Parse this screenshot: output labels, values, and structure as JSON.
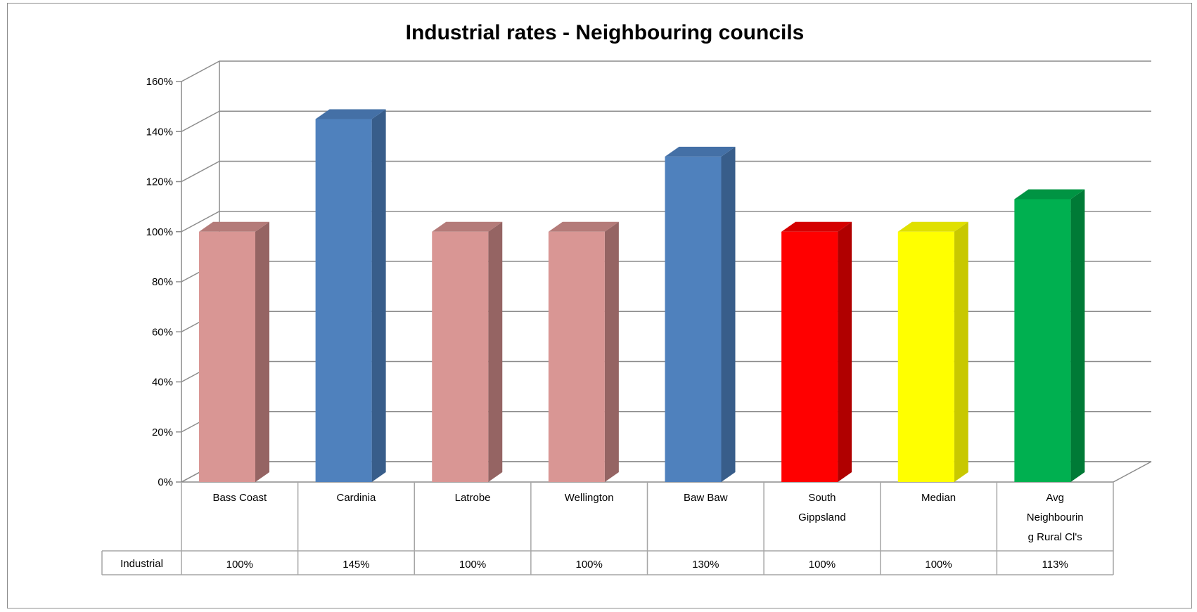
{
  "chart_data": {
    "type": "bar",
    "title": "Industrial rates - Neighbouring councils",
    "xlabel": "",
    "ylabel": "",
    "ylim": [
      0,
      160
    ],
    "yticks": [
      "0%",
      "20%",
      "40%",
      "60%",
      "80%",
      "100%",
      "120%",
      "140%",
      "160%"
    ],
    "grid": true,
    "categories": [
      "Bass Coast",
      "Cardinia",
      "Latrobe",
      "Wellington",
      "Baw Baw",
      "South Gippsland",
      "Median",
      "Avg Neighbouring Rural Cl's"
    ],
    "category_lines": [
      [
        "Bass Coast"
      ],
      [
        "Cardinia"
      ],
      [
        "Latrobe"
      ],
      [
        "Wellington"
      ],
      [
        "Baw Baw"
      ],
      [
        "South",
        "Gippsland"
      ],
      [
        "Median"
      ],
      [
        "Avg",
        "Neighbourin",
        "g Rural Cl's"
      ]
    ],
    "series": [
      {
        "name": "Industrial",
        "values": [
          100,
          145,
          100,
          100,
          130,
          100,
          100,
          113
        ]
      }
    ],
    "data_labels": [
      "100%",
      "145%",
      "100%",
      "100%",
      "130%",
      "100%",
      "100%",
      "113%"
    ],
    "bar_colors": [
      {
        "front": "#d99694",
        "side": "#956463",
        "top": "#b47b79"
      },
      {
        "front": "#4f81bd",
        "side": "#385d8a",
        "top": "#4470a6"
      },
      {
        "front": "#d99694",
        "side": "#956463",
        "top": "#b47b79"
      },
      {
        "front": "#d99694",
        "side": "#956463",
        "top": "#b47b79"
      },
      {
        "front": "#4f81bd",
        "side": "#385d8a",
        "top": "#4470a6"
      },
      {
        "front": "#ff0000",
        "side": "#b00000",
        "top": "#d40000"
      },
      {
        "front": "#ffff00",
        "side": "#c8c800",
        "top": "#e0e000"
      },
      {
        "front": "#00b050",
        "side": "#007a36",
        "top": "#009443"
      }
    ]
  }
}
